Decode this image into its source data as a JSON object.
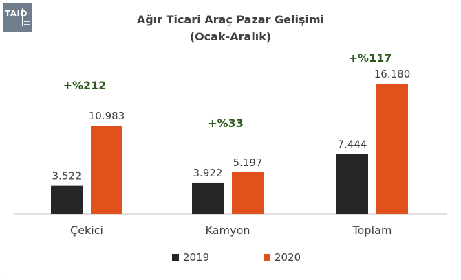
{
  "header": {
    "logo_text": "TAID",
    "title": "Ağır Ticari Araç Pazar Gelişimi",
    "subtitle": "(Ocak-Aralık)"
  },
  "colors": {
    "2019": "#262626",
    "2020": "#e2501c",
    "change_label": "#2f5a1e",
    "axis": "#c0c0c0",
    "text": "#404040"
  },
  "chart_data": {
    "type": "bar",
    "title": "Ağır Ticari Araç Pazar Gelişimi",
    "subtitle": "(Ocak-Aralık)",
    "categories": [
      "Çekici",
      "Kamyon",
      "Toplam"
    ],
    "series": [
      {
        "name": "2019",
        "values": [
          3522,
          3922,
          7444
        ],
        "labels": [
          "3.522",
          "3.922",
          "7.444"
        ]
      },
      {
        "name": "2020",
        "values": [
          10983,
          5197,
          16180
        ],
        "labels": [
          "10.983",
          "5.197",
          "16.180"
        ]
      }
    ],
    "annotations": [
      "+%212",
      "+%33",
      "+%117"
    ],
    "ylim": [
      0,
      18000
    ],
    "grid": false,
    "legend": "bottom"
  }
}
